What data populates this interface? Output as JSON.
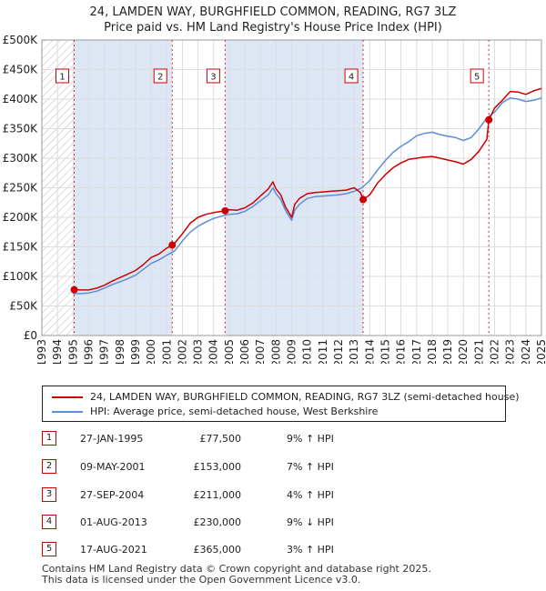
{
  "title": "24, LAMDEN WAY, BURGHFIELD COMMON, READING, RG7 3LZ",
  "subtitle": "Price paid vs. HM Land Registry's House Price Index (HPI)",
  "legend": {
    "property": "24, LAMDEN WAY, BURGHFIELD COMMON, READING, RG7 3LZ (semi-detached house)",
    "hpi": "HPI: Average price, semi-detached house, West Berkshire"
  },
  "transactions": [
    {
      "num": "1",
      "date": "27-JAN-1995",
      "price": "£77,500",
      "hpi": "9% ↑ HPI"
    },
    {
      "num": "2",
      "date": "09-MAY-2001",
      "price": "£153,000",
      "hpi": "7% ↑ HPI"
    },
    {
      "num": "3",
      "date": "27-SEP-2004",
      "price": "£211,000",
      "hpi": "4% ↑ HPI"
    },
    {
      "num": "4",
      "date": "01-AUG-2013",
      "price": "£230,000",
      "hpi": "9% ↓ HPI"
    },
    {
      "num": "5",
      "date": "17-AUG-2021",
      "price": "£365,000",
      "hpi": "3% ↑ HPI"
    }
  ],
  "footer": {
    "line1": "Contains HM Land Registry data © Crown copyright and database right 2025.",
    "line2": "This data is licensed under the Open Government Licence v3.0."
  },
  "colors": {
    "property": "#cc0000",
    "hpi": "#5b8fd6",
    "shade": "#dce6f5",
    "grid": "#dddddd",
    "marker": "#cc0000"
  },
  "chart_data": {
    "type": "line",
    "ylim": [
      0,
      500000
    ],
    "xlim": [
      1993,
      2025
    ],
    "yticks": [
      0,
      50000,
      100000,
      150000,
      200000,
      250000,
      300000,
      350000,
      400000,
      450000,
      500000
    ],
    "ytick_labels": [
      "£0",
      "£50K",
      "£100K",
      "£150K",
      "£200K",
      "£250K",
      "£300K",
      "£350K",
      "£400K",
      "£450K",
      "£500K"
    ],
    "xticks": [
      "1993",
      "1994",
      "1995",
      "1996",
      "1997",
      "1998",
      "1999",
      "2000",
      "2001",
      "2002",
      "2003",
      "2004",
      "2005",
      "2006",
      "2007",
      "2008",
      "2009",
      "2010",
      "2011",
      "2012",
      "2013",
      "2014",
      "2015",
      "2016",
      "2017",
      "2018",
      "2019",
      "2020",
      "2021",
      "2022",
      "2023",
      "2024",
      "2025"
    ],
    "grid": true,
    "hatched_region": [
      1993,
      1995.07
    ],
    "sales": [
      {
        "label": "1",
        "x": 1995.07,
        "y": 77500
      },
      {
        "label": "2",
        "x": 2001.35,
        "y": 153000
      },
      {
        "label": "3",
        "x": 2004.74,
        "y": 211000
      },
      {
        "label": "4",
        "x": 2013.58,
        "y": 230000
      },
      {
        "label": "5",
        "x": 2021.63,
        "y": 365000
      }
    ],
    "series": [
      {
        "name": "24, LAMDEN WAY, BURGHFIELD COMMON, READING, RG7 3LZ (semi-detached house)",
        "x": [
          1995.07,
          1995.5,
          1996,
          1996.5,
          1997,
          1997.5,
          1998,
          1998.5,
          1999,
          1999.5,
          2000,
          2000.5,
          2001,
          2001.35,
          2001.5,
          2002,
          2002.5,
          2003,
          2003.5,
          2004,
          2004.5,
          2004.74,
          2005,
          2005.5,
          2006,
          2006.5,
          2007,
          2007.5,
          2007.8,
          2008,
          2008.3,
          2008.6,
          2009,
          2009.2,
          2009.5,
          2010,
          2010.5,
          2011,
          2011.5,
          2012,
          2012.5,
          2013,
          2013.4,
          2013.58,
          2014,
          2014.5,
          2015,
          2015.5,
          2016,
          2016.5,
          2017,
          2017.5,
          2018,
          2018.5,
          2019,
          2019.5,
          2020,
          2020.5,
          2021,
          2021.5,
          2021.63,
          2022,
          2022.5,
          2023,
          2023.5,
          2024,
          2024.5,
          2025
        ],
        "y": [
          77500,
          77000,
          77000,
          80000,
          85000,
          92000,
          98000,
          104000,
          110000,
          120000,
          132000,
          138000,
          148000,
          153000,
          156000,
          172000,
          190000,
          200000,
          205000,
          208000,
          210000,
          211000,
          213000,
          212000,
          216000,
          224000,
          236000,
          248000,
          260000,
          248000,
          238000,
          218000,
          200000,
          222000,
          232000,
          240000,
          242000,
          243000,
          244000,
          245000,
          246000,
          250000,
          242000,
          230000,
          238000,
          258000,
          272000,
          284000,
          292000,
          298000,
          300000,
          302000,
          303000,
          300000,
          297000,
          294000,
          290000,
          298000,
          312000,
          332000,
          365000,
          385000,
          398000,
          413000,
          412000,
          408000,
          414000,
          418000
        ]
      },
      {
        "name": "HPI: Average price, semi-detached house, West Berkshire",
        "x": [
          1995,
          1995.5,
          1996,
          1996.5,
          1997,
          1997.5,
          1998,
          1998.5,
          1999,
          1999.5,
          2000,
          2000.5,
          2001,
          2001.5,
          2002,
          2002.5,
          2003,
          2003.5,
          2004,
          2004.5,
          2005,
          2005.5,
          2006,
          2006.5,
          2007,
          2007.5,
          2007.8,
          2008,
          2008.3,
          2008.6,
          2009,
          2009.2,
          2009.5,
          2010,
          2010.5,
          2011,
          2011.5,
          2012,
          2012.5,
          2013,
          2013.5,
          2014,
          2014.5,
          2015,
          2015.5,
          2016,
          2016.5,
          2017,
          2017.5,
          2018,
          2018.5,
          2019,
          2019.5,
          2020,
          2020.5,
          2021,
          2021.5,
          2022,
          2022.5,
          2023,
          2023.5,
          2024,
          2024.5,
          2025
        ],
        "y": [
          71000,
          71000,
          72000,
          75000,
          80000,
          86000,
          91000,
          96000,
          102000,
          112000,
          122000,
          128000,
          136000,
          143000,
          160000,
          175000,
          185000,
          192000,
          198000,
          202000,
          205000,
          206000,
          210000,
          218000,
          228000,
          238000,
          250000,
          240000,
          230000,
          212000,
          195000,
          212000,
          222000,
          232000,
          235000,
          236000,
          237000,
          238000,
          240000,
          244000,
          250000,
          262000,
          280000,
          296000,
          310000,
          320000,
          328000,
          338000,
          342000,
          344000,
          340000,
          337000,
          335000,
          330000,
          335000,
          350000,
          368000,
          378000,
          394000,
          402000,
          400000,
          396000,
          398000,
          402000
        ]
      }
    ]
  }
}
